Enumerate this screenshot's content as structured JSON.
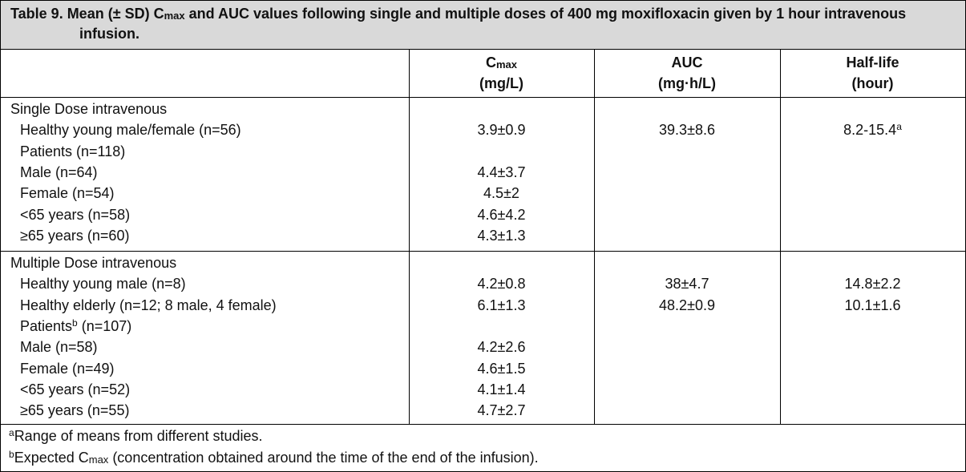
{
  "title": {
    "text": "Table 9. Mean (± SD) C",
    "sub": "max",
    "rest": "and AUC values following single and multiple doses of 400 mg moxifloxacin given by 1 hour intravenous infusion."
  },
  "header": {
    "cmax": {
      "text": "C",
      "sub": "max",
      "unit": "(mg/L)"
    },
    "auc": {
      "text": "AUC",
      "unit": "(mg·h/L)"
    },
    "half_life": {
      "text": "Half-life",
      "unit": "(hour)"
    }
  },
  "sections": [
    {
      "heading": "Single Dose intravenous",
      "rows": [
        {
          "label": "Healthy young male/female (n=56)",
          "cmax": "3.9±0.9",
          "auc": "39.3±8.6",
          "half_life": "8.2-15.4",
          "half_life_note": "a"
        },
        {
          "label": "Patients (n=118)"
        },
        {
          "label": "Male (n=64)",
          "cmax": "4.4±3.7"
        },
        {
          "label": "Female (n=54)",
          "cmax": "4.5±2"
        },
        {
          "label": "<65 years (n=58)",
          "cmax": "4.6±4.2"
        },
        {
          "label": "≥65 years (n=60)",
          "cmax": "4.3±1.3"
        }
      ]
    },
    {
      "heading": "Multiple Dose intravenous",
      "rows": [
        {
          "label": "Healthy young male (n=8)",
          "cmax": "4.2±0.8",
          "auc": "38±4.7",
          "half_life": "14.8±2.2"
        },
        {
          "label": "Healthy elderly (n=12; 8 male, 4 female)",
          "cmax": "6.1±1.3",
          "auc": "48.2±0.9",
          "half_life": "10.1±1.6"
        },
        {
          "label": "Patients",
          "label_note": "b",
          "label_rest": "(n=107)"
        },
        {
          "label": "Male (n=58)",
          "cmax": "4.2±2.6"
        },
        {
          "label": "Female (n=49)",
          "cmax": "4.6±1.5"
        },
        {
          "label": "<65 years (n=52)",
          "cmax": "4.1±1.4"
        },
        {
          "label": "≥65 years (n=55)",
          "cmax": "4.7±2.7"
        }
      ]
    }
  ],
  "footnotes": [
    {
      "mark": "a",
      "text": "Range of means from different studies."
    },
    {
      "mark": "b",
      "text": "Expected C",
      "sub": "max",
      "rest": "(concentration obtained around the time of the end of the infusion)."
    }
  ]
}
